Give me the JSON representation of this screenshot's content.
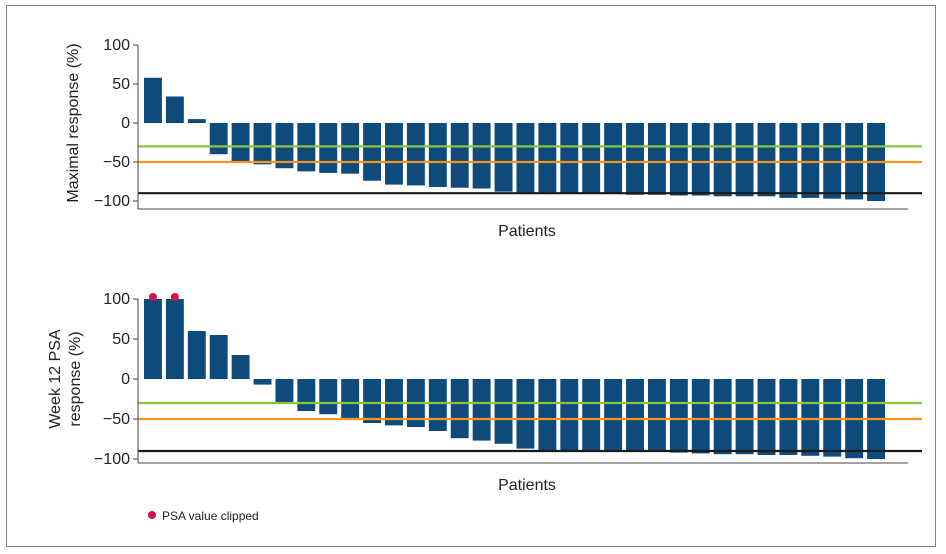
{
  "chart_data": [
    {
      "type": "bar",
      "ylabel": "Maximal response (%)",
      "xlabel": "Patients",
      "ylim": [
        -105,
        100
      ],
      "yticks": [
        100,
        50,
        0,
        -50,
        -100
      ],
      "ytick_labels": [
        "100",
        "50",
        "0",
        "−50",
        "−100"
      ],
      "bar_color": "#0f4a7c",
      "values": [
        58,
        34,
        5,
        -40,
        -49,
        -53,
        -58,
        -62,
        -64,
        -65,
        -74,
        -79,
        -80,
        -82,
        -83,
        -84,
        -88,
        -89,
        -89,
        -90,
        -90,
        -90,
        -92,
        -92,
        -93,
        -93,
        -94,
        -94,
        -94,
        -96,
        -96,
        -97,
        -98,
        -100
      ],
      "reference_lines": [
        {
          "y": -30,
          "color": "#8cc63f"
        },
        {
          "y": -50,
          "color": "#f7941d"
        },
        {
          "y": -90,
          "color": "#1a1a1a"
        }
      ]
    },
    {
      "type": "bar",
      "ylabel": [
        "Week 12 PSA",
        "response (%)"
      ],
      "xlabel": "Patients",
      "ylim": [
        -105,
        100
      ],
      "yticks": [
        100,
        50,
        0,
        -50,
        -100
      ],
      "ytick_labels": [
        "100",
        "50",
        "0",
        "−50",
        "−100"
      ],
      "bar_color": "#0f4a7c",
      "values": [
        100,
        100,
        60,
        55,
        30,
        -7,
        -30,
        -40,
        -44,
        -50,
        -55,
        -58,
        -60,
        -65,
        -74,
        -77,
        -81,
        -87,
        -89,
        -89,
        -89,
        -90,
        -90,
        -91,
        -92,
        -93,
        -94,
        -94,
        -95,
        -95,
        -96,
        -97,
        -99,
        -100
      ],
      "clipped_indices": [
        0,
        1
      ],
      "clip_marker_color": "#d11243",
      "reference_lines": [
        {
          "y": -30,
          "color": "#8cc63f"
        },
        {
          "y": -50,
          "color": "#f7941d"
        },
        {
          "y": -90,
          "color": "#1a1a1a"
        }
      ]
    }
  ],
  "legend": {
    "label": "PSA value clipped",
    "marker_color": "#d11243"
  }
}
